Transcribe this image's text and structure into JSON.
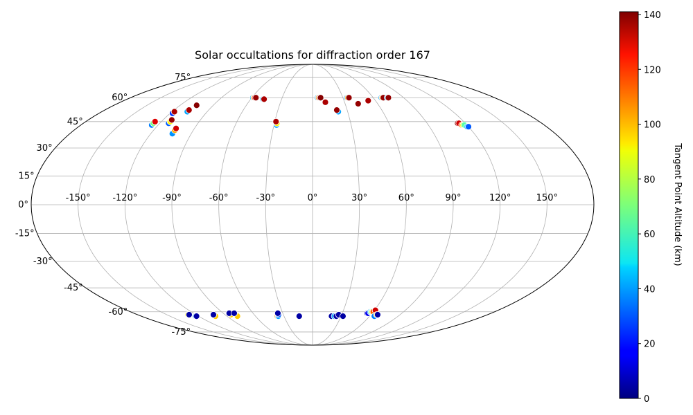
{
  "chart_data": {
    "type": "scatter",
    "projection": "mollweide",
    "title": "Solar occultations for diffraction order 167",
    "xlabel": "",
    "ylabel": "",
    "xlim": [
      -180,
      180
    ],
    "ylim": [
      -90,
      90
    ],
    "x_ticks": [
      -150,
      -120,
      -90,
      -60,
      -30,
      0,
      30,
      60,
      90,
      120,
      150
    ],
    "x_tick_labels": [
      "-150°",
      "-120°",
      "-90°",
      "-60°",
      "-30°",
      "0°",
      "30°",
      "60°",
      "90°",
      "120°",
      "150°"
    ],
    "y_ticks": [
      -75,
      -60,
      -45,
      -30,
      -15,
      0,
      15,
      30,
      45,
      60,
      75
    ],
    "y_tick_labels": [
      "-75°",
      "-60°",
      "-45°",
      "-30°",
      "-15°",
      "0°",
      "15°",
      "30°",
      "45°",
      "60°",
      "75°"
    ],
    "grid": true,
    "colorbar": {
      "label": "Tangent Point Altitude (km)",
      "colormap": "jet",
      "vmin": 0,
      "vmax": 141,
      "ticks": [
        0,
        20,
        40,
        60,
        80,
        100,
        120,
        140
      ],
      "tick_labels": [
        "0",
        "20",
        "40",
        "60",
        "80",
        "100",
        "120",
        "140"
      ]
    },
    "series": [
      {
        "points": [
          {
            "x": -125,
            "y": 43,
            "c": 35
          },
          {
            "x": -125,
            "y": 44,
            "c": 70
          },
          {
            "x": -125,
            "y": 45,
            "c": 128
          },
          {
            "x": -118,
            "y": 50,
            "c": 25
          },
          {
            "x": -118,
            "y": 51,
            "c": 135
          },
          {
            "x": -113,
            "y": 44,
            "c": 30
          },
          {
            "x": -113,
            "y": 45,
            "c": 90
          },
          {
            "x": -113,
            "y": 46,
            "c": 138
          },
          {
            "x": -107,
            "y": 51,
            "c": 40
          },
          {
            "x": -107,
            "y": 52,
            "c": 135
          },
          {
            "x": -105,
            "y": 55,
            "c": 140
          },
          {
            "x": -104,
            "y": 38,
            "c": 38
          },
          {
            "x": -104,
            "y": 40,
            "c": 100
          },
          {
            "x": -104,
            "y": 41,
            "c": 130
          },
          {
            "x": -59,
            "y": 60,
            "c": 40
          },
          {
            "x": -58,
            "y": 60,
            "c": 95
          },
          {
            "x": -57,
            "y": 60,
            "c": 125
          },
          {
            "x": -56,
            "y": 60,
            "c": 138
          },
          {
            "x": -48,
            "y": 59,
            "c": 40
          },
          {
            "x": -47,
            "y": 59,
            "c": 135
          },
          {
            "x": -28,
            "y": 43,
            "c": 40
          },
          {
            "x": -28,
            "y": 44,
            "c": 90
          },
          {
            "x": -29,
            "y": 45,
            "c": 135
          },
          {
            "x": 5,
            "y": 60,
            "c": 40
          },
          {
            "x": 6,
            "y": 60,
            "c": 100
          },
          {
            "x": 7,
            "y": 60,
            "c": 130
          },
          {
            "x": 8,
            "y": 60,
            "c": 140
          },
          {
            "x": 12,
            "y": 57,
            "c": 135
          },
          {
            "x": 22,
            "y": 51,
            "c": 40
          },
          {
            "x": 21,
            "y": 52,
            "c": 138
          },
          {
            "x": 34,
            "y": 60,
            "c": 40
          },
          {
            "x": 35,
            "y": 60,
            "c": 100
          },
          {
            "x": 36,
            "y": 60,
            "c": 138
          },
          {
            "x": 42,
            "y": 56,
            "c": 138
          },
          {
            "x": 53,
            "y": 58,
            "c": 40
          },
          {
            "x": 53,
            "y": 58,
            "c": 135
          },
          {
            "x": 68,
            "y": 60,
            "c": 40
          },
          {
            "x": 69,
            "y": 60,
            "c": 100
          },
          {
            "x": 70,
            "y": 60,
            "c": 138
          },
          {
            "x": 74,
            "y": 60,
            "c": 40
          },
          {
            "x": 75,
            "y": 60,
            "c": 138
          },
          {
            "x": 114,
            "y": 44,
            "c": 138
          },
          {
            "x": 115,
            "y": 44,
            "c": 130
          },
          {
            "x": 116,
            "y": 43,
            "c": 110
          },
          {
            "x": 117,
            "y": 43,
            "c": 90
          },
          {
            "x": 118,
            "y": 43,
            "c": 65
          },
          {
            "x": 119,
            "y": 42,
            "c": 45
          },
          {
            "x": 120,
            "y": 42,
            "c": 30
          },
          {
            "x": -128,
            "y": -62,
            "c": 90
          },
          {
            "x": -127,
            "y": -62,
            "c": 5
          },
          {
            "x": -123,
            "y": -63,
            "c": 40
          },
          {
            "x": -122,
            "y": -63,
            "c": 5
          },
          {
            "x": -102,
            "y": -63,
            "c": 95
          },
          {
            "x": -102,
            "y": -62,
            "c": 5
          },
          {
            "x": -84,
            "y": -62,
            "c": 95
          },
          {
            "x": -84,
            "y": -61,
            "c": 5
          },
          {
            "x": -79,
            "y": -63,
            "c": 95
          },
          {
            "x": -79,
            "y": -61,
            "c": 5
          },
          {
            "x": -37,
            "y": -63,
            "c": 100
          },
          {
            "x": -36,
            "y": -63,
            "c": 40
          },
          {
            "x": -35,
            "y": -62,
            "c": 30
          },
          {
            "x": -35,
            "y": -61,
            "c": 5
          },
          {
            "x": -14,
            "y": -63,
            "c": 5
          },
          {
            "x": 20,
            "y": -63,
            "c": 100
          },
          {
            "x": 20,
            "y": -63,
            "c": 5
          },
          {
            "x": 23,
            "y": -63,
            "c": 40
          },
          {
            "x": 25,
            "y": -63,
            "c": 5
          },
          {
            "x": 27,
            "y": -62,
            "c": 100
          },
          {
            "x": 27,
            "y": -62,
            "c": 5
          },
          {
            "x": 32,
            "y": -63,
            "c": 5
          },
          {
            "x": 55,
            "y": -61,
            "c": 5
          },
          {
            "x": 56,
            "y": -61,
            "c": 15
          },
          {
            "x": 57,
            "y": -60,
            "c": 35
          },
          {
            "x": 58,
            "y": -60,
            "c": 60
          },
          {
            "x": 59,
            "y": -60,
            "c": 85
          },
          {
            "x": 60,
            "y": -60,
            "c": 110
          },
          {
            "x": 61,
            "y": -59,
            "c": 130
          },
          {
            "x": 65,
            "y": -63,
            "c": 35
          },
          {
            "x": 66,
            "y": -62,
            "c": 95
          },
          {
            "x": 67,
            "y": -62,
            "c": 5
          }
        ]
      }
    ]
  }
}
